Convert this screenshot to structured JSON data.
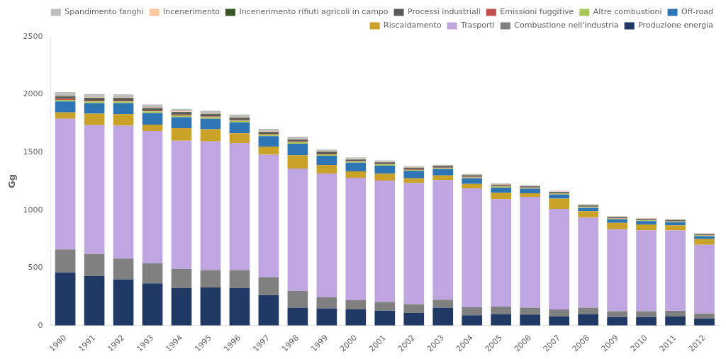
{
  "chart_data": {
    "type": "bar",
    "stacked": true,
    "ylabel": "Gg",
    "categories": [
      "1990",
      "1991",
      "1992",
      "1993",
      "1994",
      "1995",
      "1996",
      "1997",
      "1998",
      "1999",
      "2000",
      "2001",
      "2002",
      "2003",
      "2004",
      "2005",
      "2006",
      "2007",
      "2008",
      "2009",
      "2010",
      "2011",
      "2012"
    ],
    "series": [
      {
        "name": "Produzione energia",
        "color": "#1F3864",
        "values": [
          460,
          430,
          400,
          365,
          325,
          330,
          325,
          265,
          155,
          150,
          140,
          130,
          110,
          155,
          90,
          100,
          95,
          80,
          100,
          75,
          75,
          80,
          60
        ]
      },
      {
        "name": "Combustione nell'industria",
        "color": "#808080",
        "values": [
          200,
          190,
          180,
          175,
          165,
          150,
          155,
          155,
          145,
          95,
          80,
          75,
          75,
          70,
          68,
          65,
          60,
          60,
          55,
          50,
          50,
          48,
          45
        ]
      },
      {
        "name": "Trasporti",
        "color": "#BFA6E0",
        "values": [
          1130,
          1115,
          1150,
          1145,
          1110,
          1115,
          1100,
          1060,
          1060,
          1070,
          1060,
          1050,
          1050,
          1035,
          1030,
          930,
          960,
          870,
          780,
          710,
          700,
          695,
          595
        ]
      },
      {
        "name": "Riscaldamento",
        "color": "#C9A227",
        "values": [
          55,
          100,
          100,
          55,
          110,
          105,
          85,
          70,
          115,
          75,
          55,
          60,
          40,
          40,
          38,
          55,
          30,
          90,
          55,
          55,
          50,
          45,
          50
        ]
      },
      {
        "name": "Off-road",
        "color": "#2E75B6",
        "values": [
          95,
          90,
          95,
          100,
          95,
          90,
          95,
          90,
          100,
          80,
          75,
          70,
          65,
          55,
          50,
          45,
          40,
          35,
          30,
          30,
          30,
          28,
          25
        ]
      },
      {
        "name": "Altre combustioni",
        "color": "#A8C85A",
        "values": [
          15,
          15,
          15,
          15,
          15,
          14,
          13,
          13,
          13,
          12,
          10,
          10,
          8,
          8,
          8,
          8,
          7,
          7,
          7,
          6,
          6,
          5,
          5
        ]
      },
      {
        "name": "Emissioni fuggitive",
        "color": "#C0504D",
        "values": [
          8,
          8,
          8,
          7,
          7,
          7,
          7,
          6,
          6,
          6,
          5,
          5,
          5,
          5,
          5,
          5,
          4,
          4,
          4,
          3,
          3,
          3,
          3
        ]
      },
      {
        "name": "Processi industriali",
        "color": "#595959",
        "values": [
          20,
          20,
          18,
          18,
          17,
          17,
          17,
          16,
          15,
          13,
          12,
          12,
          11,
          10,
          10,
          9,
          9,
          9,
          9,
          8,
          8,
          8,
          7
        ]
      },
      {
        "name": "Incenerimento rifiuti agricoli in campo",
        "color": "#375623",
        "values": [
          5,
          5,
          5,
          5,
          5,
          5,
          5,
          4,
          4,
          4,
          3,
          3,
          3,
          3,
          3,
          3,
          2,
          2,
          2,
          2,
          2,
          2,
          2
        ]
      },
      {
        "name": "Incenerimento",
        "color": "#FFC7A0",
        "values": [
          4,
          4,
          4,
          4,
          4,
          4,
          4,
          4,
          4,
          3,
          3,
          3,
          3,
          3,
          3,
          3,
          3,
          3,
          2,
          2,
          2,
          2,
          2
        ]
      },
      {
        "name": "Spandimento fanghi",
        "color": "#BFBFBF",
        "values": [
          30,
          28,
          27,
          25,
          23,
          22,
          21,
          20,
          18,
          16,
          14,
          12,
          10,
          8,
          8,
          8,
          7,
          7,
          6,
          6,
          6,
          5,
          5
        ]
      }
    ],
    "ylim": [
      0,
      2500
    ],
    "yticks": [
      0,
      500,
      1000,
      1500,
      2000,
      2500
    ],
    "grid": false,
    "legend": "upper right"
  }
}
